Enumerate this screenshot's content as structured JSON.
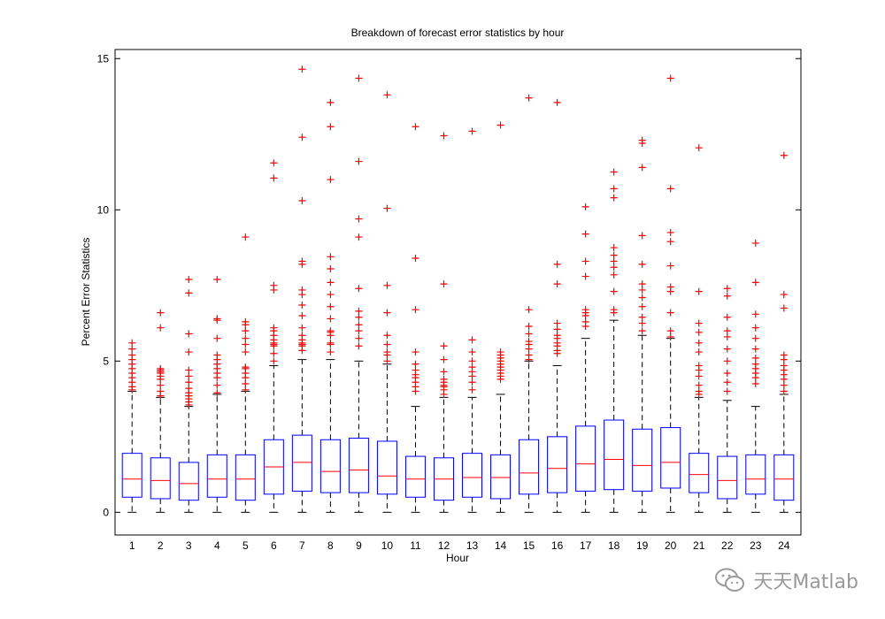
{
  "watermark": {
    "text": "天天Matlab",
    "icon": "wechat-icon"
  },
  "colors": {
    "box": "#0000ff",
    "median": "#ff0000",
    "outlier": "#ff0000",
    "whisker": "#000000",
    "axis": "#000000"
  },
  "chart_data": {
    "type": "boxplot",
    "title": "Breakdown of forecast error statistics by hour",
    "xlabel": "Hour",
    "ylabel": "Percent Error Statistics",
    "ylim": [
      -0.75,
      15.3
    ],
    "yticks": [
      0,
      5,
      10,
      15
    ],
    "grid": false,
    "categories": [
      "1",
      "2",
      "3",
      "4",
      "5",
      "6",
      "7",
      "8",
      "9",
      "10",
      "11",
      "12",
      "13",
      "14",
      "15",
      "16",
      "17",
      "18",
      "19",
      "20",
      "21",
      "22",
      "23",
      "24"
    ],
    "boxes": [
      {
        "min": 0.0,
        "q1": 0.5,
        "median": 1.1,
        "q3": 1.95,
        "whisker_high": 4.0,
        "outliers": [
          4.05,
          4.15,
          4.3,
          4.45,
          4.6,
          4.75,
          4.9,
          5.05,
          5.2,
          5.4,
          5.6
        ]
      },
      {
        "min": 0.0,
        "q1": 0.45,
        "median": 1.05,
        "q3": 1.8,
        "whisker_high": 3.8,
        "outliers": [
          3.85,
          4.0,
          4.2,
          4.4,
          4.5,
          4.6,
          4.65,
          4.7,
          4.75,
          6.1,
          6.6
        ]
      },
      {
        "min": 0.0,
        "q1": 0.4,
        "median": 0.95,
        "q3": 1.65,
        "whisker_high": 3.5,
        "outliers": [
          3.55,
          3.65,
          3.75,
          3.85,
          3.95,
          4.1,
          4.3,
          4.5,
          4.7,
          5.3,
          5.9,
          7.25,
          7.7
        ]
      },
      {
        "min": 0.0,
        "q1": 0.5,
        "median": 1.1,
        "q3": 1.9,
        "whisker_high": 3.9,
        "outliers": [
          3.95,
          4.2,
          4.45,
          4.6,
          4.75,
          4.9,
          5.05,
          5.2,
          5.75,
          6.35,
          6.4,
          7.7
        ]
      },
      {
        "min": 0.0,
        "q1": 0.4,
        "median": 1.1,
        "q3": 1.9,
        "whisker_high": 4.0,
        "outliers": [
          4.05,
          4.25,
          4.45,
          4.6,
          4.75,
          4.8,
          5.3,
          5.55,
          5.75,
          6.0,
          6.2,
          6.3,
          9.1
        ]
      },
      {
        "min": 0.0,
        "q1": 0.6,
        "median": 1.5,
        "q3": 2.4,
        "whisker_high": 4.85,
        "outliers": [
          5.0,
          5.25,
          5.5,
          5.55,
          5.6,
          5.7,
          5.85,
          6.0,
          6.1,
          7.35,
          7.5,
          11.05,
          11.55
        ]
      },
      {
        "min": 0.0,
        "q1": 0.7,
        "median": 1.65,
        "q3": 2.55,
        "whisker_high": 5.05,
        "outliers": [
          5.35,
          5.5,
          5.55,
          5.6,
          5.7,
          5.85,
          6.1,
          6.5,
          6.85,
          7.2,
          7.35,
          8.2,
          8.3,
          10.3,
          12.4,
          14.65
        ]
      },
      {
        "min": 0.0,
        "q1": 0.65,
        "median": 1.35,
        "q3": 2.4,
        "whisker_high": 5.05,
        "outliers": [
          5.3,
          5.55,
          5.6,
          5.85,
          5.95,
          6.0,
          6.4,
          6.8,
          7.2,
          7.6,
          8.05,
          8.45,
          11.0,
          12.75,
          13.55
        ]
      },
      {
        "min": 0.0,
        "q1": 0.65,
        "median": 1.4,
        "q3": 2.45,
        "whisker_high": 5.0,
        "outliers": [
          5.5,
          5.75,
          6.0,
          6.2,
          6.45,
          6.65,
          7.4,
          9.1,
          9.7,
          11.6,
          14.35
        ]
      },
      {
        "min": 0.0,
        "q1": 0.6,
        "median": 1.2,
        "q3": 2.35,
        "whisker_high": 4.9,
        "outliers": [
          5.0,
          5.2,
          5.3,
          5.55,
          5.85,
          6.6,
          7.5,
          10.05,
          13.8
        ]
      },
      {
        "min": 0.0,
        "q1": 0.5,
        "median": 1.1,
        "q3": 1.85,
        "whisker_high": 3.5,
        "outliers": [
          4.0,
          4.15,
          4.3,
          4.45,
          4.55,
          4.7,
          4.9,
          5.3,
          6.7,
          8.4,
          12.75
        ]
      },
      {
        "min": 0.0,
        "q1": 0.4,
        "median": 1.1,
        "q3": 1.8,
        "whisker_high": 3.8,
        "outliers": [
          3.9,
          4.05,
          4.15,
          4.2,
          4.3,
          4.4,
          4.65,
          5.05,
          5.5,
          7.55,
          12.45
        ]
      },
      {
        "min": 0.0,
        "q1": 0.5,
        "median": 1.15,
        "q3": 1.95,
        "whisker_high": 3.8,
        "outliers": [
          4.05,
          4.3,
          4.5,
          4.65,
          4.8,
          5.0,
          5.3,
          5.7,
          12.6
        ]
      },
      {
        "min": 0.0,
        "q1": 0.45,
        "median": 1.15,
        "q3": 1.9,
        "whisker_high": 3.9,
        "outliers": [
          4.4,
          4.5,
          4.6,
          4.7,
          4.8,
          4.9,
          5.0,
          5.1,
          5.2,
          5.3,
          12.8
        ]
      },
      {
        "min": 0.0,
        "q1": 0.6,
        "median": 1.3,
        "q3": 2.4,
        "whisker_high": 5.0,
        "outliers": [
          5.05,
          5.2,
          5.4,
          5.55,
          5.65,
          5.9,
          6.15,
          6.7,
          13.7
        ]
      },
      {
        "min": 0.0,
        "q1": 0.65,
        "median": 1.45,
        "q3": 2.5,
        "whisker_high": 4.85,
        "outliers": [
          5.25,
          5.35,
          5.5,
          5.6,
          5.75,
          5.85,
          6.05,
          6.25,
          7.55,
          8.2,
          13.55
        ]
      },
      {
        "min": 0.0,
        "q1": 0.7,
        "median": 1.6,
        "q3": 2.85,
        "whisker_high": 5.75,
        "outliers": [
          6.15,
          6.3,
          6.5,
          6.6,
          6.7,
          7.8,
          8.3,
          9.2,
          10.1
        ]
      },
      {
        "min": 0.0,
        "q1": 0.75,
        "median": 1.75,
        "q3": 3.05,
        "whisker_high": 6.35,
        "outliers": [
          6.6,
          6.7,
          7.3,
          7.85,
          8.1,
          8.3,
          8.5,
          8.75,
          10.4,
          10.7,
          11.25
        ]
      },
      {
        "min": 0.0,
        "q1": 0.7,
        "median": 1.55,
        "q3": 2.75,
        "whisker_high": 5.85,
        "outliers": [
          6.0,
          6.25,
          6.45,
          6.8,
          7.1,
          7.35,
          7.55,
          8.2,
          9.15,
          11.4,
          12.2,
          12.3
        ]
      },
      {
        "min": 0.0,
        "q1": 0.8,
        "median": 1.65,
        "q3": 2.8,
        "whisker_high": 5.75,
        "outliers": [
          5.8,
          6.0,
          6.6,
          7.3,
          7.45,
          8.15,
          8.95,
          9.25,
          10.7,
          14.35
        ]
      },
      {
        "min": 0.0,
        "q1": 0.65,
        "median": 1.25,
        "q3": 1.95,
        "whisker_high": 3.8,
        "outliers": [
          3.9,
          4.0,
          4.2,
          4.5,
          4.7,
          4.85,
          5.3,
          5.6,
          5.95,
          6.25,
          7.3,
          12.05
        ]
      },
      {
        "min": 0.0,
        "q1": 0.45,
        "median": 1.05,
        "q3": 1.85,
        "whisker_high": 3.7,
        "outliers": [
          4.0,
          4.3,
          4.6,
          5.0,
          5.4,
          5.8,
          6.0,
          6.45,
          7.15,
          7.4
        ]
      },
      {
        "min": 0.0,
        "q1": 0.6,
        "median": 1.1,
        "q3": 1.9,
        "whisker_high": 3.5,
        "outliers": [
          4.25,
          4.45,
          4.6,
          4.75,
          4.9,
          5.1,
          5.4,
          5.75,
          6.1,
          6.55,
          7.6,
          8.9
        ]
      },
      {
        "min": 0.0,
        "q1": 0.4,
        "median": 1.1,
        "q3": 1.9,
        "whisker_high": 3.9,
        "outliers": [
          4.0,
          4.2,
          4.4,
          4.55,
          4.7,
          4.85,
          5.05,
          5.2,
          6.75,
          7.2,
          11.8
        ]
      }
    ]
  }
}
